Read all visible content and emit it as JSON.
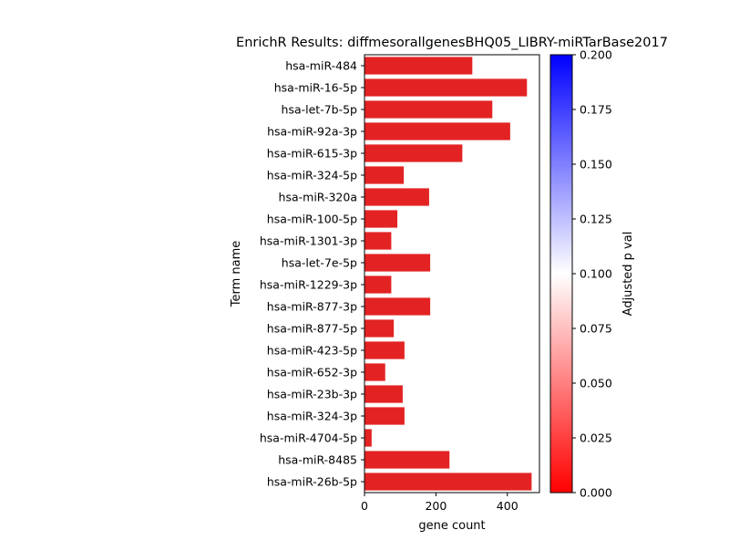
{
  "chart_data": {
    "type": "bar",
    "orientation": "horizontal",
    "title": "EnrichR Results: diffmesorallgenesBHQ05_LIBRY-miRTarBase2017",
    "xlabel": "gene count",
    "ylabel": "Term name",
    "xlim": [
      0,
      490
    ],
    "xticks": [
      0,
      200,
      400
    ],
    "grid": false,
    "categories": [
      "hsa-miR-484",
      "hsa-miR-16-5p",
      "hsa-let-7b-5p",
      "hsa-miR-92a-3p",
      "hsa-miR-615-3p",
      "hsa-miR-324-5p",
      "hsa-miR-320a",
      "hsa-miR-100-5p",
      "hsa-miR-1301-3p",
      "hsa-let-7e-5p",
      "hsa-miR-1229-3p",
      "hsa-miR-877-3p",
      "hsa-miR-877-5p",
      "hsa-miR-423-5p",
      "hsa-miR-652-3p",
      "hsa-miR-23b-3p",
      "hsa-miR-324-3p",
      "hsa-miR-4704-5p",
      "hsa-miR-8485",
      "hsa-miR-26b-5p"
    ],
    "values": [
      302,
      455,
      358,
      408,
      274,
      110,
      181,
      92,
      75,
      184,
      75,
      184,
      82,
      112,
      58,
      107,
      112,
      20,
      238,
      468
    ],
    "adjusted_p_values": [
      0.002,
      0.002,
      0.002,
      0.002,
      0.002,
      0.002,
      0.002,
      0.002,
      0.002,
      0.002,
      0.002,
      0.002,
      0.002,
      0.002,
      0.002,
      0.002,
      0.002,
      0.002,
      0.002,
      0.002
    ],
    "colorbar": {
      "label": "Adjusted p val",
      "range": [
        0,
        0.2
      ],
      "ticks": [
        "0.000",
        "0.025",
        "0.050",
        "0.075",
        "0.100",
        "0.125",
        "0.150",
        "0.175",
        "0.200"
      ],
      "colormap": [
        "#ff0000",
        "#ffffff",
        "#0000ff"
      ]
    },
    "bar_color": "#e32323"
  }
}
